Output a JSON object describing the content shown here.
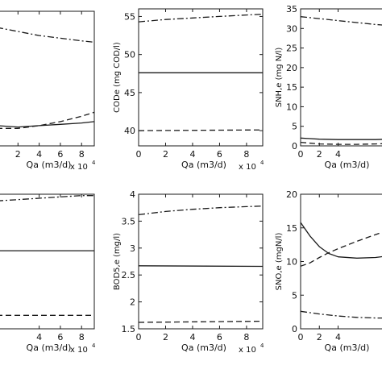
{
  "chart_data": [
    {
      "type": "line",
      "xlabel": "Qa (m3/d)",
      "ylabel": "",
      "x_multiplier": "x 10",
      "x_multiplier_exp": "4",
      "xlim": [
        0,
        9.2
      ],
      "xticks": [
        "2",
        "4",
        "6",
        "8"
      ],
      "xtick_values": [
        2,
        4,
        6,
        8
      ],
      "ylim": [
        0,
        1
      ],
      "yticks": [],
      "grid": false,
      "series": [
        {
          "style": "dashdot",
          "x": [
            0,
            2,
            4,
            6,
            8,
            9.2
          ],
          "y": [
            0.88,
            0.85,
            0.82,
            0.8,
            0.78,
            0.77
          ]
        },
        {
          "style": "dashed",
          "x": [
            0,
            2,
            4,
            6,
            8,
            9.2
          ],
          "y": [
            0.13,
            0.13,
            0.15,
            0.18,
            0.22,
            0.25
          ]
        },
        {
          "style": "solid",
          "x": [
            0,
            2,
            4,
            6,
            8,
            9.2
          ],
          "y": [
            0.15,
            0.14,
            0.15,
            0.16,
            0.17,
            0.18
          ]
        }
      ]
    },
    {
      "type": "line",
      "xlabel": "Qa (m3/d)",
      "ylabel": "CODe (mg COD/l)",
      "x_multiplier": "x 10",
      "x_multiplier_exp": "4",
      "xlim": [
        0,
        9.2
      ],
      "xticks": [
        "0",
        "2",
        "4",
        "6",
        "8"
      ],
      "xtick_values": [
        0,
        2,
        4,
        6,
        8
      ],
      "ylim": [
        38,
        56
      ],
      "yticks": [
        "40",
        "45",
        "50",
        "55"
      ],
      "ytick_values": [
        40,
        45,
        50,
        55
      ],
      "grid": false,
      "series": [
        {
          "style": "dashdot",
          "x": [
            0,
            2,
            4,
            6,
            8,
            9.2
          ],
          "y": [
            54.3,
            54.6,
            54.8,
            55.0,
            55.2,
            55.3
          ]
        },
        {
          "style": "solid",
          "x": [
            0,
            9.2
          ],
          "y": [
            47.6,
            47.6
          ]
        },
        {
          "style": "dashed",
          "x": [
            0,
            9.2
          ],
          "y": [
            40.0,
            40.1
          ]
        }
      ]
    },
    {
      "type": "line",
      "xlabel": "Qa (m3/d)",
      "ylabel": "SNH,e (mg N/l)",
      "xlim": [
        0,
        9.2
      ],
      "xticks": [
        "0",
        "2",
        "4"
      ],
      "xtick_values": [
        0,
        2,
        4
      ],
      "ylim": [
        0,
        35
      ],
      "yticks": [
        "0",
        "5",
        "10",
        "15",
        "20",
        "25",
        "30",
        "35"
      ],
      "ytick_values": [
        0,
        5,
        10,
        15,
        20,
        25,
        30,
        35
      ],
      "grid": false,
      "series": [
        {
          "style": "dashdot",
          "x": [
            0,
            2,
            4,
            6,
            8,
            9.2
          ],
          "y": [
            33.0,
            32.5,
            32.0,
            31.5,
            31.0,
            30.8
          ]
        },
        {
          "style": "solid",
          "x": [
            0,
            2,
            4,
            6,
            8,
            9.2
          ],
          "y": [
            2.0,
            1.7,
            1.6,
            1.6,
            1.6,
            1.7
          ]
        },
        {
          "style": "dashed",
          "x": [
            0,
            2,
            4,
            6,
            8,
            9.2
          ],
          "y": [
            0.9,
            0.5,
            0.4,
            0.4,
            0.5,
            0.6
          ]
        }
      ]
    },
    {
      "type": "line",
      "xlabel": "Qa (m3/d)",
      "ylabel": "",
      "x_multiplier": "x 10",
      "x_multiplier_exp": "4",
      "xlim": [
        0,
        9.2
      ],
      "xticks": [
        "4",
        "6",
        "8"
      ],
      "xtick_values": [
        4,
        6,
        8
      ],
      "ylim": [
        0,
        1
      ],
      "yticks": [],
      "grid": false,
      "series": [
        {
          "style": "dashdot",
          "x": [
            0,
            2,
            4,
            6,
            8,
            9.2
          ],
          "y": [
            0.95,
            0.96,
            0.97,
            0.98,
            0.99,
            0.99
          ]
        },
        {
          "style": "solid",
          "x": [
            0,
            9.2
          ],
          "y": [
            0.58,
            0.58
          ]
        },
        {
          "style": "dashed",
          "x": [
            0,
            9.2
          ],
          "y": [
            0.1,
            0.1
          ]
        }
      ]
    },
    {
      "type": "line",
      "xlabel": "Qa (m3/d)",
      "ylabel": "BOD5,e (mg/l)",
      "x_multiplier": "x 10",
      "x_multiplier_exp": "4",
      "xlim": [
        0,
        9.2
      ],
      "xticks": [
        "0",
        "2",
        "4",
        "6",
        "8"
      ],
      "xtick_values": [
        0,
        2,
        4,
        6,
        8
      ],
      "ylim": [
        1.5,
        4.0
      ],
      "yticks": [
        "1.5",
        "2",
        "2.5",
        "3",
        "3.5",
        "4"
      ],
      "ytick_values": [
        1.5,
        2,
        2.5,
        3,
        3.5,
        4
      ],
      "grid": false,
      "series": [
        {
          "style": "dashdot",
          "x": [
            0,
            2,
            4,
            6,
            8,
            9.2
          ],
          "y": [
            3.62,
            3.68,
            3.72,
            3.75,
            3.77,
            3.78
          ]
        },
        {
          "style": "solid",
          "x": [
            0,
            9.2
          ],
          "y": [
            2.67,
            2.66
          ]
        },
        {
          "style": "dashed",
          "x": [
            0,
            9.2
          ],
          "y": [
            1.62,
            1.64
          ]
        }
      ]
    },
    {
      "type": "line",
      "xlabel": "Qa (m3/d)",
      "ylabel": "SNO,e (mgN/l)",
      "xlim": [
        0,
        9.2
      ],
      "xticks": [
        "0",
        "2",
        "4"
      ],
      "xtick_values": [
        0,
        2,
        4
      ],
      "ylim": [
        0,
        20
      ],
      "yticks": [
        "0",
        "5",
        "10",
        "15",
        "20"
      ],
      "ytick_values": [
        0,
        5,
        10,
        15,
        20
      ],
      "grid": false,
      "series": [
        {
          "style": "solid",
          "x": [
            0,
            1,
            2,
            3,
            4,
            6,
            8,
            9.2
          ],
          "y": [
            15.8,
            13.8,
            12.2,
            11.2,
            10.7,
            10.5,
            10.6,
            10.8
          ]
        },
        {
          "style": "dashed",
          "x": [
            0,
            1,
            2,
            3,
            4,
            6,
            8,
            9.2
          ],
          "y": [
            9.3,
            9.8,
            10.6,
            11.3,
            11.9,
            13.0,
            14.0,
            14.6
          ]
        },
        {
          "style": "dashdot",
          "x": [
            0,
            2,
            4,
            6,
            8,
            9.2
          ],
          "y": [
            2.6,
            2.2,
            1.9,
            1.7,
            1.6,
            1.6
          ]
        }
      ]
    }
  ]
}
